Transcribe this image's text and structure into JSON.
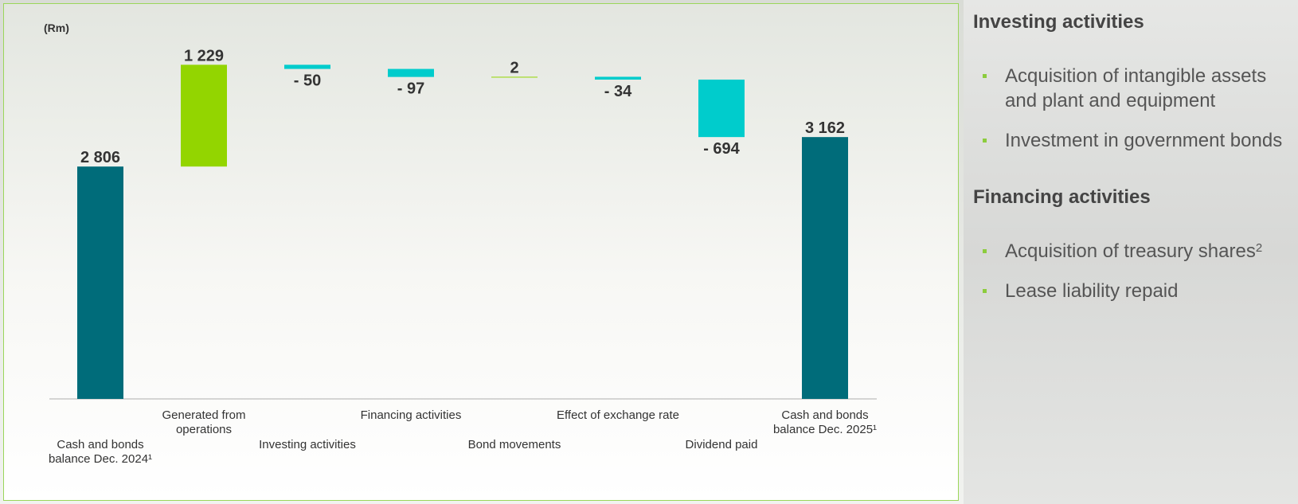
{
  "chart_data": {
    "type": "waterfall",
    "unit_label": "(Rm)",
    "colors": {
      "total": "#006c7a",
      "increase": "#93d500",
      "decrease": "#00cccc"
    },
    "bars": [
      {
        "label_lines": [
          "Cash and bonds",
          "balance Dec. 2024¹"
        ],
        "value": 2806,
        "kind": "total",
        "display": "2 806",
        "label_row": "low"
      },
      {
        "label_lines": [
          "Generated from",
          "operations"
        ],
        "value": 1229,
        "kind": "increase",
        "display": "1 229",
        "label_row": "high"
      },
      {
        "label_lines": [
          "Investing activities"
        ],
        "value": -50,
        "kind": "decrease",
        "display": "- 50",
        "label_row": "low"
      },
      {
        "label_lines": [
          "Financing activities"
        ],
        "value": -97,
        "kind": "decrease",
        "display": "- 97",
        "label_row": "high"
      },
      {
        "label_lines": [
          "Bond movements"
        ],
        "value": 2,
        "kind": "increase",
        "display": "2",
        "label_row": "low"
      },
      {
        "label_lines": [
          "Effect of exchange rate"
        ],
        "value": -34,
        "kind": "decrease",
        "display": "- 34",
        "label_row": "high"
      },
      {
        "label_lines": [
          "Dividend paid"
        ],
        "value": -694,
        "kind": "decrease",
        "display": "- 694",
        "label_row": "low"
      },
      {
        "label_lines": [
          "Cash and bonds",
          "balance Dec. 2025¹"
        ],
        "value": 3162,
        "kind": "total",
        "display": "3 162",
        "label_row": "high"
      }
    ],
    "ylim": [
      0,
      4000
    ],
    "grid": false
  },
  "side": {
    "investing": {
      "heading": "Investing activities",
      "items": [
        {
          "text": "Acquisition of intangible assets and plant and equipment"
        },
        {
          "text": "Investment in government bonds"
        }
      ]
    },
    "financing": {
      "heading": "Financing activities",
      "items": [
        {
          "text": "Acquisition of treasury shares",
          "sup": "2"
        },
        {
          "text": "Lease liability repaid"
        }
      ]
    }
  }
}
